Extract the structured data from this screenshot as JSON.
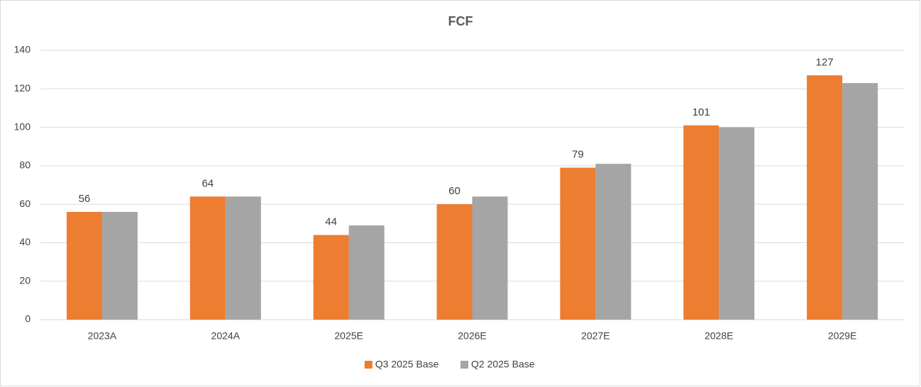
{
  "chart_data": {
    "type": "bar",
    "title": "FCF",
    "categories": [
      "2023A",
      "2024A",
      "2025E",
      "2026E",
      "2027E",
      "2028E",
      "2029E"
    ],
    "series": [
      {
        "name": "Q3 2025 Base",
        "color": "#ED7D31",
        "values": [
          56,
          64,
          44,
          60,
          79,
          101,
          127
        ],
        "data_labels": true
      },
      {
        "name": "Q2 2025 Base",
        "color": "#A5A5A5",
        "values": [
          56,
          64,
          49,
          64,
          81,
          100,
          123
        ],
        "data_labels": false
      }
    ],
    "ylim": [
      0,
      140
    ],
    "yticks": [
      0,
      20,
      40,
      60,
      80,
      100,
      120,
      140
    ],
    "grid": true,
    "legend": "bottom"
  }
}
